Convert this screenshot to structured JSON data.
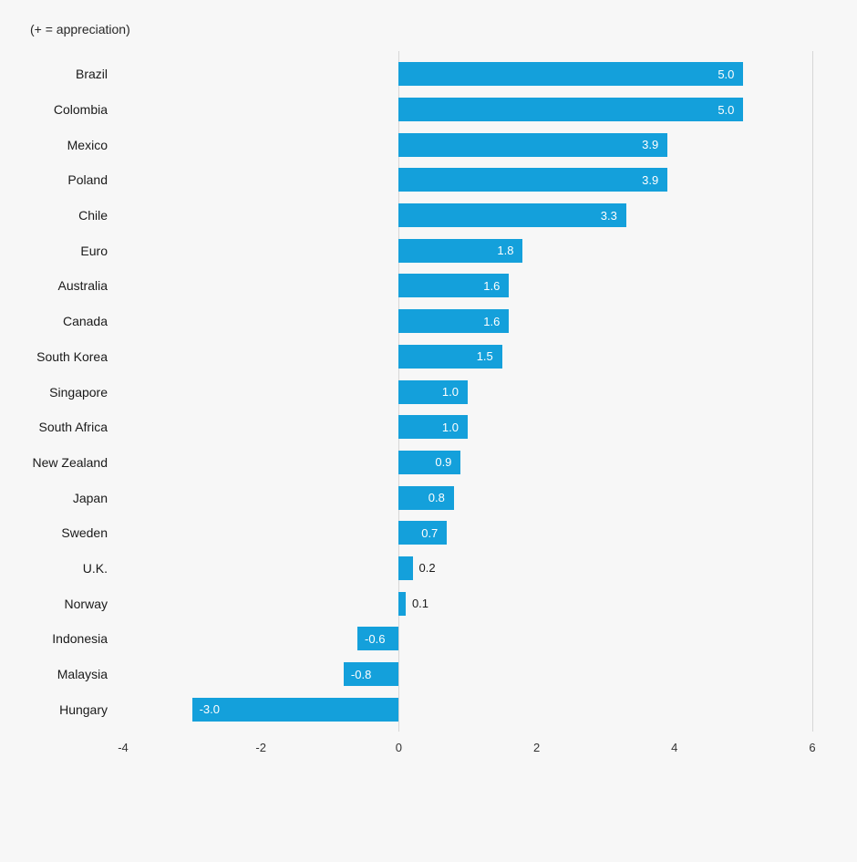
{
  "subtitle": "(+ = appreciation)",
  "chart_data": {
    "type": "bar",
    "orientation": "horizontal",
    "title": "",
    "note": "(+ = appreciation)",
    "categories": [
      "Brazil",
      "Colombia",
      "Mexico",
      "Poland",
      "Chile",
      "Euro",
      "Australia",
      "Canada",
      "South Korea",
      "Singapore",
      "South Africa",
      "New Zealand",
      "Japan",
      "Sweden",
      "U.K.",
      "Norway",
      "Indonesia",
      "Malaysia",
      "Hungary"
    ],
    "values": [
      5.0,
      5.0,
      3.9,
      3.9,
      3.3,
      1.8,
      1.6,
      1.6,
      1.5,
      1.0,
      1.0,
      0.9,
      0.8,
      0.7,
      0.2,
      0.1,
      -0.6,
      -0.8,
      -3.0
    ],
    "value_labels": [
      "5.0",
      "5.0",
      "3.9",
      "3.9",
      "3.3",
      "1.8",
      "1.6",
      "1.6",
      "1.5",
      "1.0",
      "1.0",
      "0.9",
      "0.8",
      "0.7",
      "0.2",
      "0.1",
      "-0.6",
      "-0.8",
      "-3.0"
    ],
    "xlabel": "",
    "ylabel": "",
    "xlim": [
      -4,
      6
    ],
    "x_ticks": [
      -4,
      -2,
      0,
      2,
      4,
      6
    ],
    "x_tick_labels": [
      "-4",
      "-2",
      "0",
      "2",
      "4",
      "6"
    ],
    "gridlines_at": [
      0,
      6
    ],
    "bar_color": "#14a0db",
    "background_color": "#f7f7f7",
    "gridline_color": "#d6d6d6",
    "label_inside_color": "#ffffff",
    "label_outside_color": "#1a1a1a",
    "legend": "none",
    "grid": "vertical lines at 0 and right edge only",
    "label_placement_rule": "values >= 0.5 inside right end (white); 0 to 0.5 outside right (dark); negatives inside left end (white)"
  }
}
